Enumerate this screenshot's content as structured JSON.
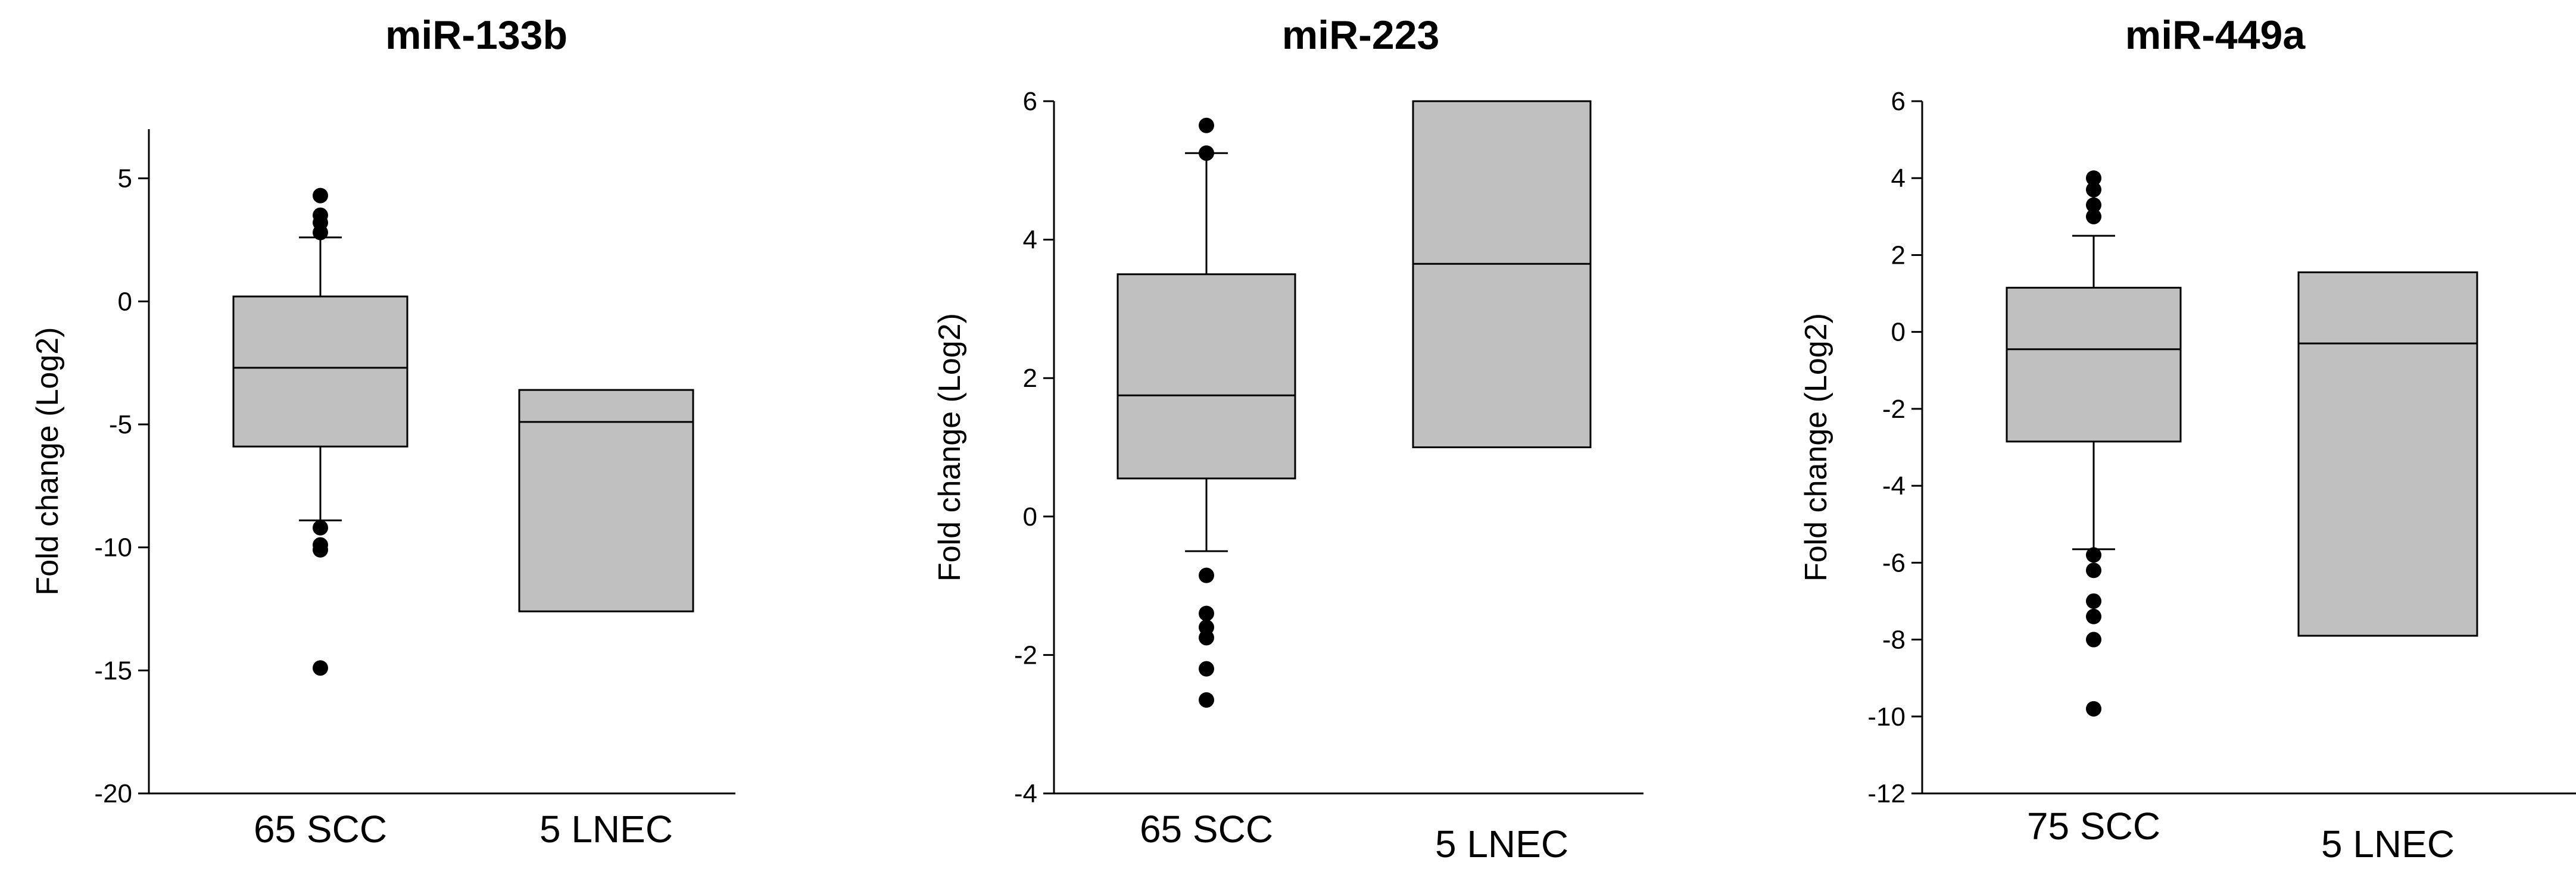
{
  "chart_data": [
    {
      "type": "box",
      "title": "miR-133b",
      "ylabel": "Fold change (Log2)",
      "xlabel": "",
      "ylim": [
        -20,
        7
      ],
      "yticks": [
        5,
        0,
        -5,
        -10,
        -15,
        -20
      ],
      "categories": [
        "65 SCC",
        "5 LNEC"
      ],
      "boxes": [
        {
          "category": "65 SCC",
          "q1": -5.9,
          "median": -2.7,
          "q3": 0.2,
          "whisker_low": -8.9,
          "whisker_high": 2.6,
          "outliers": [
            4.3,
            3.5,
            3.2,
            2.8,
            -9.2,
            -9.9,
            -10.1,
            -14.9
          ]
        },
        {
          "category": "5 LNEC",
          "q1": -12.6,
          "median": -4.9,
          "q3": -3.6,
          "whisker_low": null,
          "whisker_high": null,
          "outliers": []
        }
      ]
    },
    {
      "type": "box",
      "title": "miR-223",
      "ylabel": "Fold change (Log2)",
      "xlabel": "",
      "ylim": [
        -4,
        6
      ],
      "yticks": [
        6,
        4,
        2,
        0,
        -2,
        -4
      ],
      "categories": [
        "65 SCC",
        "5 LNEC"
      ],
      "boxes": [
        {
          "category": "65 SCC",
          "q1": 0.55,
          "median": 1.75,
          "q3": 3.5,
          "whisker_low": -0.5,
          "whisker_high": 5.25,
          "outliers": [
            5.65,
            5.25,
            -0.85,
            -1.4,
            -1.6,
            -1.75,
            -2.2,
            -2.65
          ]
        },
        {
          "category": "5 LNEC",
          "q1": 1.0,
          "median": 3.65,
          "q3": 6.0,
          "whisker_low": null,
          "whisker_high": null,
          "outliers": []
        }
      ]
    },
    {
      "type": "box",
      "title": "miR-449a",
      "ylabel": "Fold change (Log2)",
      "xlabel": "",
      "ylim": [
        -12,
        6
      ],
      "yticks": [
        6,
        4,
        2,
        0,
        -2,
        -4,
        -6,
        -8,
        -10,
        -12
      ],
      "categories": [
        "75 SCC",
        "5 LNEC"
      ],
      "boxes": [
        {
          "category": "75 SCC",
          "q1": -2.85,
          "median": -0.45,
          "q3": 1.15,
          "whisker_low": -5.65,
          "whisker_high": 2.5,
          "outliers": [
            4.0,
            3.7,
            3.3,
            3.0,
            -5.8,
            -6.2,
            -7.0,
            -7.4,
            -8.0,
            -9.8
          ]
        },
        {
          "category": "5 LNEC",
          "q1": -7.9,
          "median": -0.3,
          "q3": 1.55,
          "whisker_low": null,
          "whisker_high": null,
          "outliers": []
        }
      ]
    }
  ]
}
